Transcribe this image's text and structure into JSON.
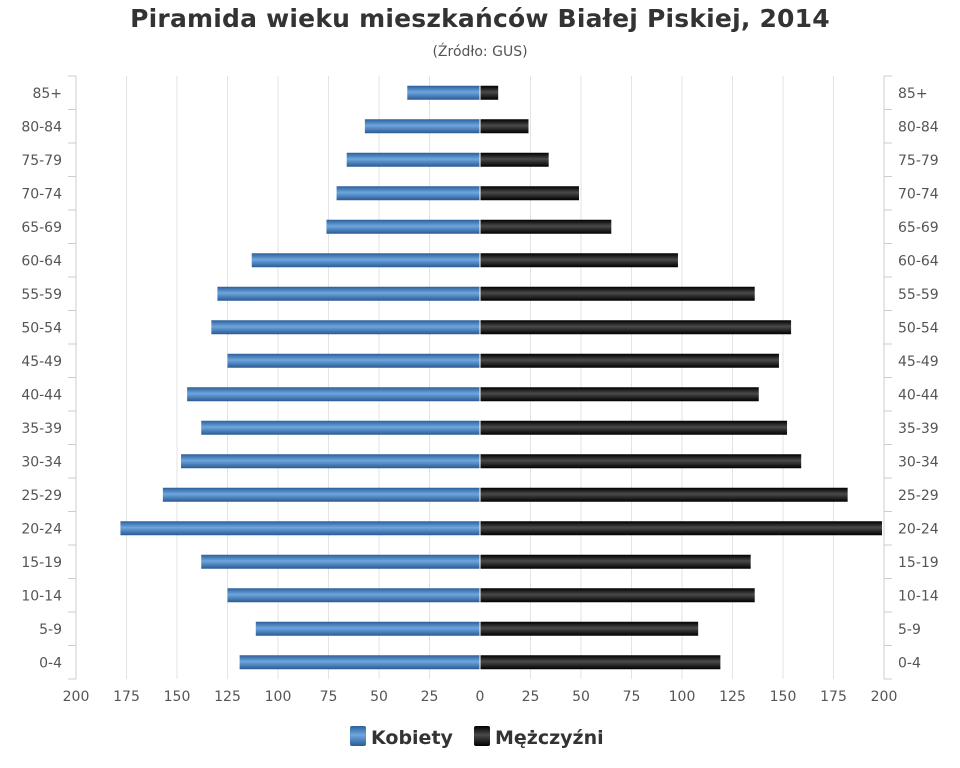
{
  "chart_data": {
    "type": "bar",
    "orientation": "horizontal",
    "layout": "population-pyramid",
    "title": "Piramida wieku mieszkańców Białej Piskiej, 2014",
    "subtitle": "(Źródło: GUS)",
    "categories": [
      "85+",
      "80-84",
      "75-79",
      "70-74",
      "65-69",
      "60-64",
      "55-59",
      "50-54",
      "45-49",
      "40-44",
      "35-39",
      "30-34",
      "25-29",
      "20-24",
      "15-19",
      "10-14",
      "5-9",
      "0-4"
    ],
    "series": [
      {
        "name": "Kobiety",
        "side": "left",
        "color": "#3a74b8",
        "values": [
          36,
          57,
          66,
          71,
          76,
          113,
          130,
          133,
          125,
          145,
          138,
          148,
          157,
          178,
          138,
          125,
          111,
          119
        ]
      },
      {
        "name": "Mężczyźni",
        "side": "right",
        "color": "#111111",
        "values": [
          9,
          24,
          34,
          49,
          65,
          98,
          136,
          154,
          148,
          138,
          152,
          159,
          182,
          199,
          134,
          136,
          108,
          119
        ]
      }
    ],
    "x_ticks": [
      200,
      175,
      150,
      125,
      100,
      75,
      50,
      25,
      0,
      25,
      50,
      75,
      100,
      125,
      150,
      175,
      200
    ],
    "xlim": [
      -200,
      200
    ],
    "grid": true,
    "legend_position": "bottom-center"
  }
}
